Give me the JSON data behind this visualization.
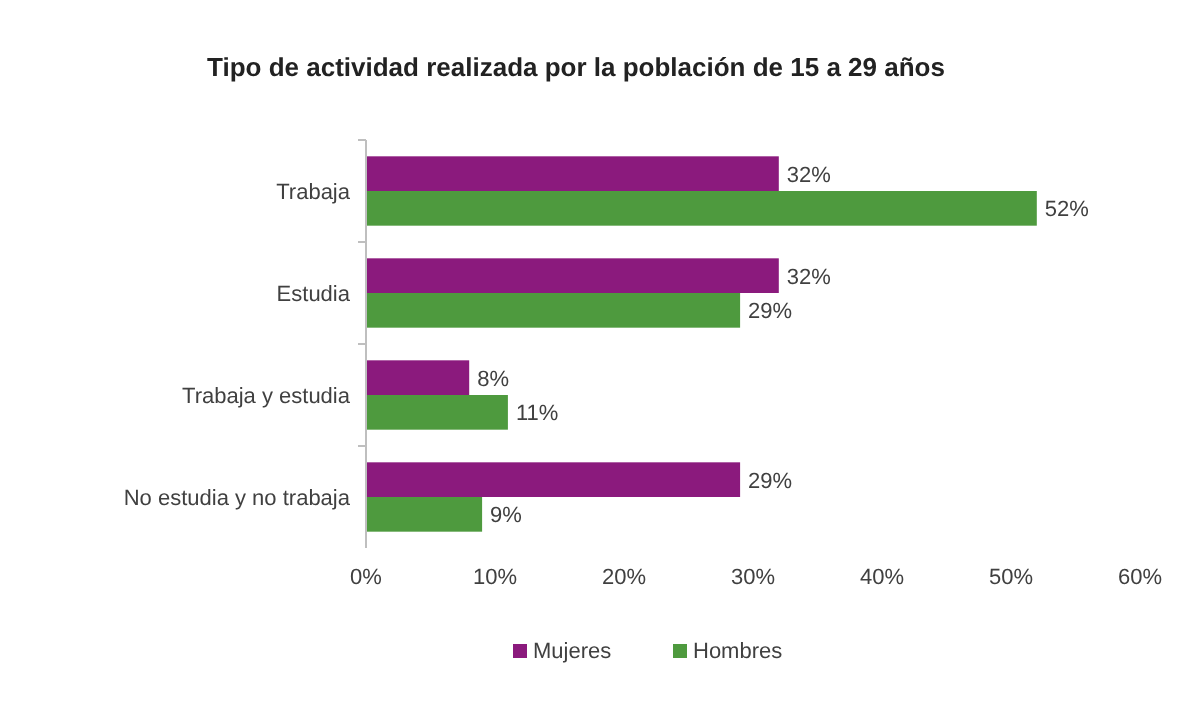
{
  "chart_data": {
    "type": "bar",
    "orientation": "horizontal",
    "title": "Tipo de actividad realizada por la población de 15 a 29 años",
    "categories": [
      "Trabaja",
      "Estudia",
      "Trabaja y estudia",
      "No estudia y no trabaja"
    ],
    "series": [
      {
        "name": "Mujeres",
        "color": "#8b1a7d",
        "values": [
          32,
          32,
          8,
          29
        ],
        "value_labels": [
          "32%",
          "32%",
          "8%",
          "29%"
        ]
      },
      {
        "name": "Hombres",
        "color": "#4e9a3e",
        "values": [
          52,
          29,
          11,
          9
        ],
        "value_labels": [
          "52%",
          "29%",
          "11%",
          "9%"
        ]
      }
    ],
    "xlim": [
      0,
      60
    ],
    "xticks": [
      {
        "value": 0,
        "label": "0%"
      },
      {
        "value": 10,
        "label": "10%"
      },
      {
        "value": 20,
        "label": "20%"
      },
      {
        "value": 30,
        "label": "30%"
      },
      {
        "value": 40,
        "label": "40%"
      },
      {
        "value": 50,
        "label": "50%"
      },
      {
        "value": 60,
        "label": "60%"
      }
    ],
    "grid": false,
    "legend": "bottom"
  }
}
